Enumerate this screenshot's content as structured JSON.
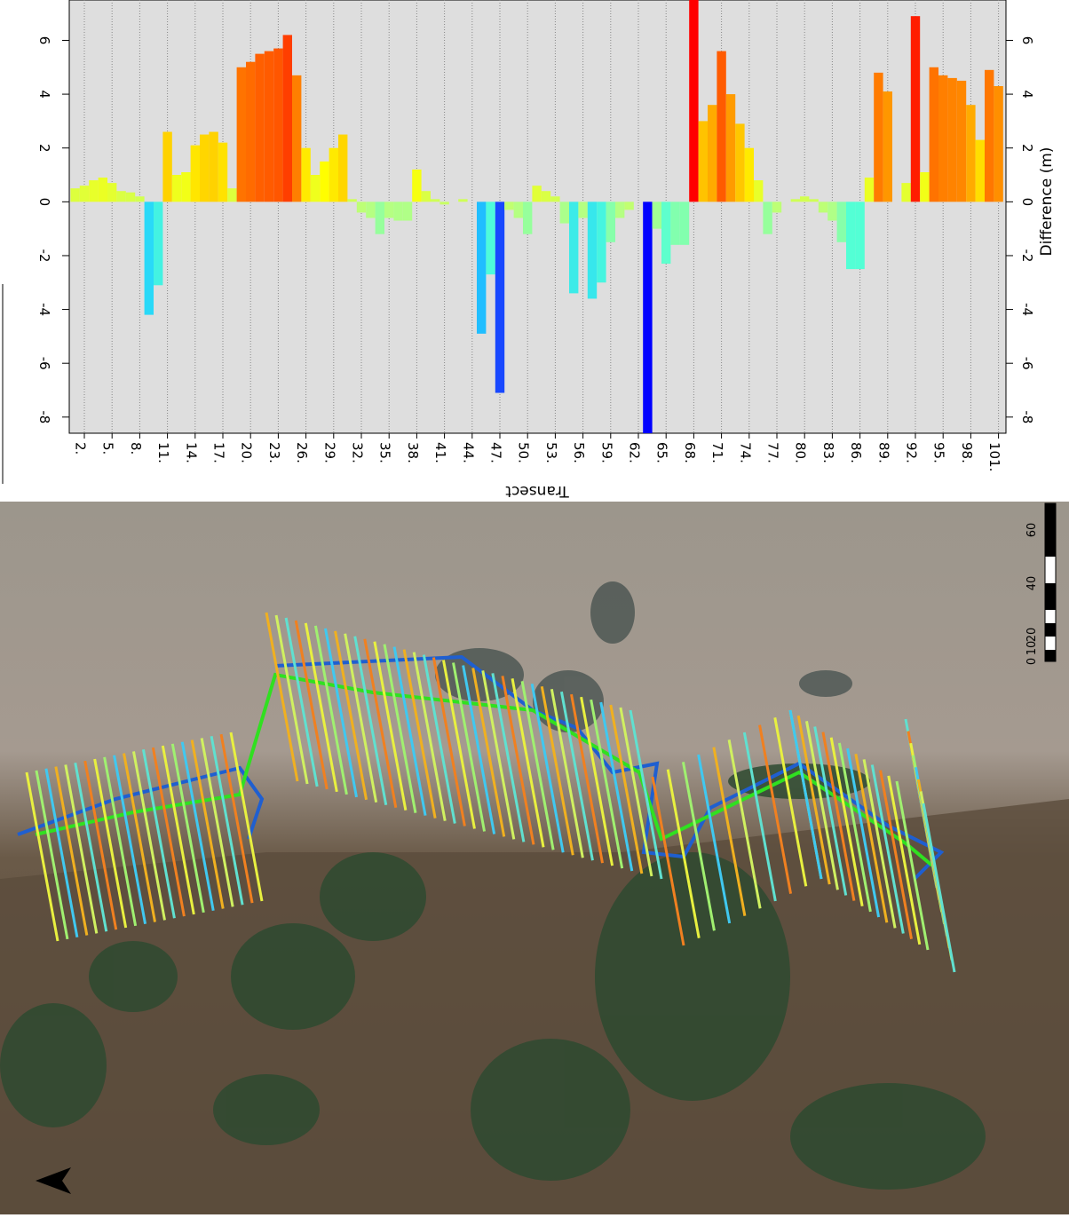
{
  "chart_data": {
    "type": "bar",
    "x_label": "Transect",
    "y_label": "Difference (m)",
    "categories": [
      null,
      "2.",
      null,
      null,
      "5.",
      null,
      null,
      "8.",
      null,
      null,
      "11.",
      null,
      null,
      "14.",
      null,
      null,
      "17.",
      null,
      null,
      "20.",
      null,
      null,
      "23.",
      null,
      null,
      "26.",
      null,
      null,
      "29.",
      null,
      null,
      "32.",
      null,
      null,
      "35.",
      null,
      null,
      "38.",
      null,
      null,
      "41.",
      null,
      null,
      "44.",
      null,
      null,
      "47.",
      null,
      null,
      "50.",
      null,
      null,
      "53.",
      null,
      null,
      "56.",
      null,
      null,
      "59.",
      null,
      null,
      "62.",
      null,
      null,
      "65.",
      null,
      null,
      "68.",
      null,
      null,
      "71.",
      null,
      null,
      "74.",
      null,
      null,
      "77.",
      null,
      null,
      "80.",
      null,
      null,
      "83.",
      null,
      null,
      "86.",
      null,
      null,
      "89.",
      null,
      null,
      "92.",
      null,
      null,
      "95.",
      null,
      null,
      "98.",
      null,
      null,
      "101."
    ],
    "values": [
      0.5,
      0.6,
      0.8,
      0.9,
      0.7,
      0.4,
      0.35,
      0.2,
      -4.2,
      -3.1,
      2.6,
      1.0,
      1.1,
      2.1,
      2.5,
      2.6,
      2.2,
      0.5,
      5.0,
      5.2,
      5.5,
      5.6,
      5.7,
      6.2,
      4.7,
      2.0,
      1.0,
      1.5,
      2.0,
      2.5,
      0.1,
      -0.4,
      -0.6,
      -1.2,
      -0.6,
      -0.7,
      -0.7,
      1.2,
      0.4,
      0.1,
      -0.1,
      0.0,
      0.1,
      0.0,
      -4.9,
      -2.7,
      -7.1,
      -0.3,
      -0.6,
      -1.2,
      0.6,
      0.4,
      0.2,
      -0.8,
      -3.4,
      -0.6,
      -3.6,
      -3.0,
      -1.5,
      -0.6,
      -0.3,
      0.0,
      -8.6,
      -1.0,
      -2.3,
      -1.6,
      -1.6,
      7.5,
      3.0,
      3.6,
      5.6,
      4.0,
      2.9,
      2.0,
      0.8,
      -1.2,
      -0.4,
      0.0,
      0.1,
      0.2,
      0.1,
      -0.4,
      -0.7,
      -1.5,
      -2.5,
      -2.5,
      0.9,
      4.8,
      4.1,
      0.0,
      0.7,
      6.9,
      1.1,
      5.0,
      4.7,
      4.6,
      4.5,
      3.6,
      2.3,
      4.9,
      4.3
    ],
    "colorscale": [
      "#0000ff",
      "#2060ff",
      "#20d0ff",
      "#50ffd8",
      "#b8ff80",
      "#ffff00",
      "#ffb000",
      "#ff6000",
      "#ff0000"
    ],
    "ylim": [
      -8.6,
      7.5
    ],
    "yticks": [
      -8,
      -6,
      -4,
      -2,
      0,
      2,
      4,
      6
    ],
    "grid": true
  },
  "map": {
    "scale_labels": [
      "0",
      "10",
      "20",
      "40",
      "60"
    ]
  }
}
